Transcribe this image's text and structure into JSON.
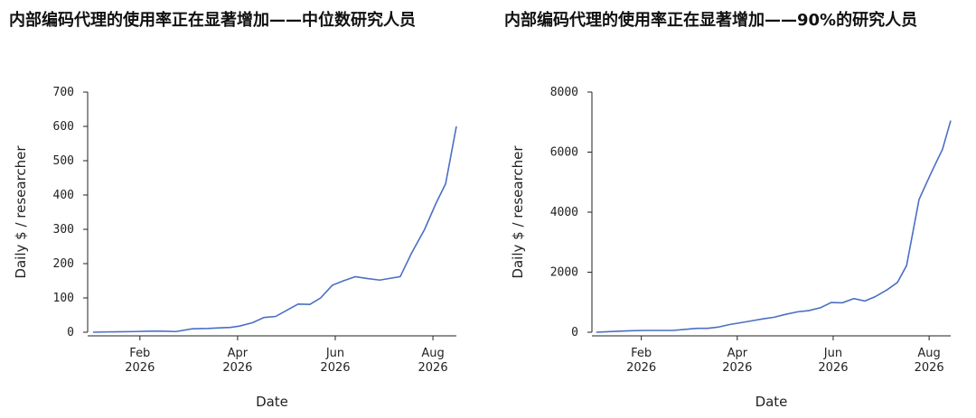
{
  "chart_data": [
    {
      "type": "line",
      "title": "内部编码代理的使用率正在显著增加——中位数研究人员",
      "xlabel": "Date",
      "ylabel": "Daily $ / researcher",
      "xlim": [
        0.93,
        8.48
      ],
      "ylim": [
        0,
        700
      ],
      "xticks": [
        {
          "value": 2,
          "label": "Feb\n2026"
        },
        {
          "value": 4,
          "label": "Apr\n2026"
        },
        {
          "value": 6,
          "label": "Jun\n2026"
        },
        {
          "value": 8,
          "label": "Aug\n2026"
        }
      ],
      "yticks": [
        0,
        100,
        200,
        300,
        400,
        500,
        600,
        700
      ],
      "x": [
        1.04,
        1.35,
        1.91,
        2.19,
        2.46,
        2.74,
        3.07,
        3.39,
        3.67,
        3.85,
        4.04,
        4.31,
        4.54,
        4.78,
        5.02,
        5.24,
        5.48,
        5.7,
        5.94,
        6.17,
        6.41,
        6.63,
        6.91,
        7.33,
        7.56,
        7.83,
        8.06,
        8.26,
        8.48
      ],
      "series": [
        {
          "color": "#4a6fc4",
          "values": [
            0,
            1,
            2,
            3,
            3,
            2,
            10,
            11,
            13,
            14,
            18,
            28,
            43,
            46,
            65,
            82,
            81,
            100,
            137,
            150,
            162,
            157,
            152,
            162,
            230,
            300,
            375,
            433,
            600
          ]
        }
      ]
    },
    {
      "type": "line",
      "title": "内部编码代理的使用率正在显著增加——90%的研究人员",
      "xlabel": "Date",
      "ylabel": "Daily $ / researcher",
      "xlim": [
        0.97,
        8.45
      ],
      "ylim": [
        0,
        8000
      ],
      "xticks": [
        {
          "value": 2,
          "label": "Feb\n2026"
        },
        {
          "value": 4,
          "label": "Apr\n2026"
        },
        {
          "value": 6,
          "label": "Jun\n2026"
        },
        {
          "value": 8,
          "label": "Aug\n2026"
        }
      ],
      "yticks": [
        0,
        2000,
        4000,
        6000,
        8000
      ],
      "x": [
        1.06,
        1.34,
        1.62,
        1.81,
        2.09,
        2.38,
        2.66,
        2.94,
        3.17,
        3.38,
        3.6,
        3.85,
        4.08,
        4.3,
        4.55,
        4.77,
        5.02,
        5.26,
        5.49,
        5.74,
        5.96,
        6.19,
        6.43,
        6.66,
        6.87,
        7.13,
        7.34,
        7.53,
        7.79,
        8.04,
        8.28,
        8.45
      ],
      "series": [
        {
          "color": "#4a6fc4",
          "values": [
            0,
            20,
            40,
            50,
            60,
            60,
            60,
            100,
            130,
            130,
            170,
            260,
            320,
            380,
            450,
            500,
            600,
            680,
            720,
            820,
            990,
            980,
            1120,
            1040,
            1180,
            1420,
            1660,
            2220,
            4420,
            5300,
            6100,
            7050
          ]
        }
      ]
    }
  ]
}
